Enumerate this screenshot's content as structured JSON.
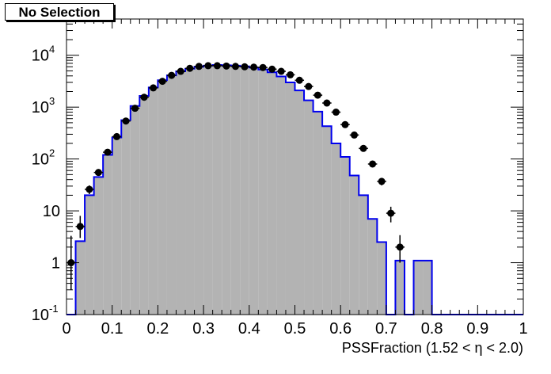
{
  "selection_label": "No Selection",
  "chart_data": {
    "type": "histogram",
    "xlabel": "PSSFraction (1.52 <  η < 2.0)",
    "ylabel": "",
    "x_range": [
      0,
      1
    ],
    "y_range": [
      0.1,
      50000
    ],
    "y_scale": "log",
    "x_ticks": [
      "0",
      "0.1",
      "0.2",
      "0.3",
      "0.4",
      "0.5",
      "0.6",
      "0.7",
      "0.8",
      "0.9",
      "1"
    ],
    "y_ticks": [
      {
        "value": 0.1,
        "base": "10",
        "exp": "-1"
      },
      {
        "value": 1,
        "base": "1",
        "exp": ""
      },
      {
        "value": 10,
        "base": "10",
        "exp": ""
      },
      {
        "value": 100,
        "base": "10",
        "exp": "2"
      },
      {
        "value": 1000,
        "base": "10",
        "exp": "3"
      },
      {
        "value": 10000,
        "base": "10",
        "exp": "4"
      }
    ],
    "bin_width": 0.02,
    "grid": false,
    "colors": {
      "fill": "#b3b3b3",
      "outline": "#0000ee",
      "points": "#000000"
    },
    "series": [
      {
        "kind": "filled-histogram",
        "bin_edges_start": 0,
        "values": [
          0.1,
          2.6,
          20,
          45,
          120,
          260,
          560,
          1050,
          1650,
          2400,
          3300,
          4100,
          4900,
          5500,
          6000,
          6300,
          6500,
          6400,
          6300,
          6100,
          5800,
          5300,
          4700,
          3900,
          3000,
          2100,
          1350,
          820,
          430,
          200,
          110,
          48,
          20,
          7,
          2.5,
          0.1,
          1.1,
          0.1,
          1.1,
          1.1,
          0.1,
          0.1,
          0.1,
          0.1,
          0.1,
          0.1,
          0.1,
          0.1,
          0.1,
          0.1
        ]
      },
      {
        "kind": "data-points",
        "x": [
          0.01,
          0.03,
          0.05,
          0.07,
          0.09,
          0.11,
          0.13,
          0.15,
          0.17,
          0.19,
          0.21,
          0.23,
          0.25,
          0.27,
          0.29,
          0.31,
          0.33,
          0.35,
          0.37,
          0.39,
          0.41,
          0.43,
          0.45,
          0.47,
          0.49,
          0.51,
          0.53,
          0.55,
          0.57,
          0.59,
          0.61,
          0.63,
          0.65,
          0.67,
          0.69,
          0.71,
          0.73
        ],
        "y": [
          1.0,
          5,
          26,
          55,
          135,
          270,
          540,
          950,
          1550,
          2350,
          3150,
          4100,
          4900,
          5600,
          6100,
          6300,
          6300,
          6200,
          6100,
          6000,
          5900,
          5800,
          5400,
          4900,
          4200,
          3300,
          2500,
          1700,
          1200,
          800,
          460,
          290,
          160,
          80,
          37,
          9,
          2
        ],
        "y_err_low": [
          0.7,
          2,
          5,
          7,
          12,
          16,
          23,
          31,
          39,
          48,
          56,
          64,
          70,
          75,
          78,
          79,
          79,
          79,
          78,
          77,
          77,
          76,
          73,
          70,
          65,
          57,
          50,
          41,
          35,
          28,
          21,
          17,
          13,
          9,
          6,
          3,
          1
        ],
        "y_err_high": [
          2.3,
          3,
          5,
          7,
          12,
          16,
          23,
          31,
          39,
          48,
          56,
          64,
          70,
          75,
          78,
          79,
          79,
          79,
          78,
          77,
          77,
          76,
          73,
          70,
          65,
          57,
          50,
          41,
          35,
          28,
          21,
          17,
          13,
          9,
          6,
          3,
          1.4
        ]
      }
    ]
  }
}
